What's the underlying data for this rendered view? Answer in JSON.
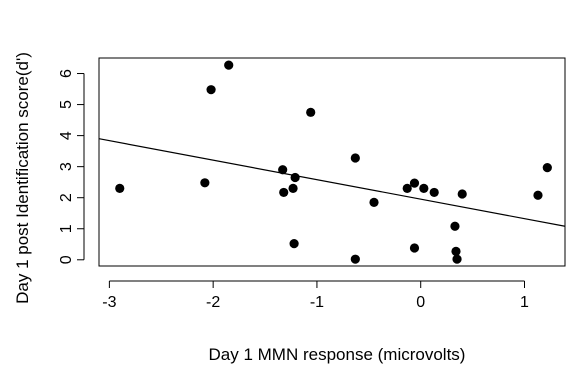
{
  "chart_data": {
    "type": "scatter",
    "xlabel": "Day 1 MMN response (microvolts)",
    "ylabel": "Day 1 post Identification score(d')",
    "xlim": [
      -3.1,
      1.4
    ],
    "ylim": [
      -0.2,
      6.5
    ],
    "x_ticks": [
      -3,
      -2,
      -1,
      0,
      1
    ],
    "x_tick_labels": [
      "-3",
      "-2",
      "-1",
      "0",
      "1"
    ],
    "y_ticks": [
      0,
      1,
      2,
      3,
      4,
      5,
      6
    ],
    "y_tick_labels": [
      "0",
      "1",
      "2",
      "3",
      "4",
      "5",
      "6"
    ],
    "grid": false,
    "legend": "none",
    "colors": {
      "points": "#000000",
      "line": "#000000",
      "frame": "#000000"
    },
    "series": [
      {
        "points": [
          {
            "x": -2.9,
            "y": 2.3
          },
          {
            "x": -2.08,
            "y": 2.48
          },
          {
            "x": -2.02,
            "y": 5.48
          },
          {
            "x": -1.85,
            "y": 6.27
          },
          {
            "x": -1.33,
            "y": 2.9
          },
          {
            "x": -1.32,
            "y": 2.17
          },
          {
            "x": -1.23,
            "y": 2.3
          },
          {
            "x": -1.21,
            "y": 2.65
          },
          {
            "x": -1.22,
            "y": 0.52
          },
          {
            "x": -1.06,
            "y": 4.75
          },
          {
            "x": -0.63,
            "y": 3.28
          },
          {
            "x": -0.63,
            "y": 0.02
          },
          {
            "x": -0.45,
            "y": 1.85
          },
          {
            "x": -0.13,
            "y": 2.3
          },
          {
            "x": -0.06,
            "y": 2.47
          },
          {
            "x": -0.06,
            "y": 0.38
          },
          {
            "x": 0.03,
            "y": 2.3
          },
          {
            "x": 0.13,
            "y": 2.17
          },
          {
            "x": 0.33,
            "y": 1.08
          },
          {
            "x": 0.34,
            "y": 0.27
          },
          {
            "x": 0.35,
            "y": 0.02
          },
          {
            "x": 0.4,
            "y": 2.12
          },
          {
            "x": 1.13,
            "y": 2.08
          },
          {
            "x": 1.22,
            "y": 2.97
          }
        ]
      }
    ],
    "trendline": {
      "x": [
        -3.1,
        1.4
      ],
      "y": [
        3.9,
        1.08
      ]
    }
  }
}
